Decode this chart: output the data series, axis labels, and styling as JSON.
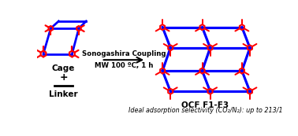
{
  "background_color": "#ffffff",
  "cage_label": "Cage",
  "plus_label": "+",
  "linker_label": "Linker",
  "arrow_label_top": "Sonogashira Coupling",
  "arrow_label_bottom": "MW 100 ºC, 1 h",
  "product_label1": "OCF F1-F3",
  "product_label2": "Ideal adsorption selectivity (CO₂/N₂): up to 213/1",
  "red_color": "#ff0000",
  "blue_color": "#0000ff",
  "black_color": "#000000",
  "fig_width": 3.78,
  "fig_height": 1.73
}
